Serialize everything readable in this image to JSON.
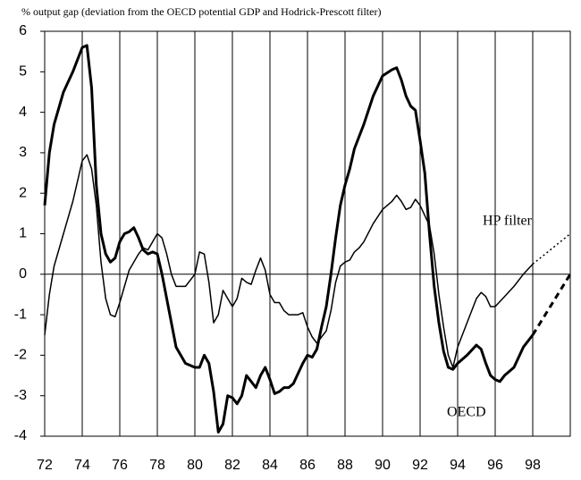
{
  "chart_data": {
    "type": "line",
    "title": "% output gap (deviation from the OECD potential GDP and Hodrick-Prescott filter)",
    "xlim": [
      72,
      100
    ],
    "ylim": [
      -4,
      6
    ],
    "xticks": [
      72,
      74,
      76,
      78,
      80,
      82,
      84,
      86,
      88,
      90,
      92,
      94,
      96,
      98
    ],
    "yticks": [
      -4,
      -3,
      -2,
      -1,
      0,
      1,
      2,
      3,
      4,
      5,
      6
    ],
    "grid": "x",
    "series": [
      {
        "name": "OECD",
        "color": "#000000",
        "width": 3,
        "dash": "solid",
        "x": [
          72.0,
          72.25,
          72.5,
          73.0,
          73.5,
          74.0,
          74.25,
          74.5,
          74.75,
          75.0,
          75.25,
          75.5,
          75.75,
          76.0,
          76.25,
          76.5,
          76.75,
          77.0,
          77.25,
          77.5,
          77.75,
          78.0,
          78.25,
          78.5,
          78.75,
          79.0,
          79.5,
          80.0,
          80.25,
          80.5,
          80.75,
          81.0,
          81.25,
          81.5,
          81.75,
          82.0,
          82.25,
          82.5,
          82.75,
          83.0,
          83.25,
          83.5,
          83.75,
          84.0,
          84.25,
          84.5,
          84.75,
          85.0,
          85.25,
          85.5,
          85.75,
          86.0,
          86.25,
          86.5,
          86.75,
          87.0,
          87.25,
          87.5,
          87.75,
          88.0,
          88.25,
          88.5,
          89.0,
          89.5,
          90.0,
          90.5,
          90.75,
          91.0,
          91.25,
          91.5,
          91.75,
          92.0,
          92.25,
          92.5,
          92.75,
          93.0,
          93.25,
          93.5,
          93.75,
          94.0,
          94.5,
          95.0,
          95.25,
          95.5,
          95.75,
          96.0,
          96.25,
          96.5,
          97.0,
          97.5,
          98.0
        ],
        "values": [
          1.7,
          3.0,
          3.7,
          4.5,
          5.0,
          5.6,
          5.65,
          4.6,
          2.2,
          1.0,
          0.5,
          0.3,
          0.4,
          0.8,
          1.0,
          1.05,
          1.15,
          0.9,
          0.6,
          0.5,
          0.55,
          0.5,
          0.0,
          -0.6,
          -1.2,
          -1.8,
          -2.2,
          -2.3,
          -2.3,
          -2.0,
          -2.2,
          -2.9,
          -3.9,
          -3.7,
          -3.0,
          -3.05,
          -3.2,
          -3.0,
          -2.5,
          -2.65,
          -2.8,
          -2.5,
          -2.3,
          -2.6,
          -2.95,
          -2.9,
          -2.8,
          -2.8,
          -2.7,
          -2.45,
          -2.2,
          -2.0,
          -2.05,
          -1.85,
          -1.3,
          -0.8,
          0.0,
          0.9,
          1.7,
          2.2,
          2.6,
          3.1,
          3.7,
          4.4,
          4.9,
          5.05,
          5.1,
          4.8,
          4.4,
          4.15,
          4.05,
          3.3,
          2.5,
          1.0,
          -0.3,
          -1.2,
          -1.9,
          -2.3,
          -2.35,
          -2.2,
          -2.0,
          -1.75,
          -1.85,
          -2.2,
          -2.5,
          -2.6,
          -2.65,
          -2.5,
          -2.3,
          -1.8,
          -1.5
        ]
      },
      {
        "name": "HP filter",
        "color": "#000000",
        "width": 1.5,
        "dash": "solid",
        "x": [
          72.0,
          72.25,
          72.5,
          73.0,
          73.5,
          74.0,
          74.25,
          74.5,
          74.75,
          75.0,
          75.25,
          75.5,
          75.75,
          76.0,
          76.25,
          76.5,
          77.0,
          77.25,
          77.5,
          77.75,
          78.0,
          78.25,
          78.5,
          78.75,
          79.0,
          79.5,
          80.0,
          80.25,
          80.5,
          80.75,
          81.0,
          81.25,
          81.5,
          81.75,
          82.0,
          82.25,
          82.5,
          82.75,
          83.0,
          83.25,
          83.5,
          83.75,
          84.0,
          84.25,
          84.5,
          84.75,
          85.0,
          85.5,
          85.75,
          86.0,
          86.25,
          86.5,
          86.75,
          87.0,
          87.25,
          87.5,
          87.75,
          88.0,
          88.25,
          88.5,
          88.75,
          89.0,
          89.5,
          90.0,
          90.5,
          90.75,
          91.0,
          91.25,
          91.5,
          91.75,
          92.0,
          92.5,
          92.75,
          93.0,
          93.25,
          93.5,
          93.75,
          94.0,
          94.5,
          95.0,
          95.25,
          95.5,
          95.75,
          96.0,
          96.5,
          97.0,
          97.5,
          98.0
        ],
        "values": [
          -1.5,
          -0.5,
          0.2,
          1.0,
          1.8,
          2.8,
          2.95,
          2.6,
          1.7,
          0.3,
          -0.6,
          -1.0,
          -1.05,
          -0.7,
          -0.3,
          0.1,
          0.5,
          0.65,
          0.6,
          0.8,
          1.0,
          0.9,
          0.5,
          0.0,
          -0.3,
          -0.3,
          0.0,
          0.55,
          0.5,
          -0.2,
          -1.2,
          -1.0,
          -0.4,
          -0.6,
          -0.8,
          -0.6,
          -0.1,
          -0.2,
          -0.25,
          0.1,
          0.4,
          0.1,
          -0.5,
          -0.7,
          -0.7,
          -0.9,
          -1.0,
          -1.0,
          -0.95,
          -1.3,
          -1.55,
          -1.7,
          -1.55,
          -1.4,
          -0.9,
          -0.2,
          0.2,
          0.3,
          0.35,
          0.55,
          0.65,
          0.8,
          1.25,
          1.6,
          1.8,
          1.95,
          1.8,
          1.6,
          1.65,
          1.85,
          1.7,
          1.2,
          0.5,
          -0.5,
          -1.3,
          -2.0,
          -2.3,
          -1.8,
          -1.2,
          -0.6,
          -0.45,
          -0.55,
          -0.8,
          -0.8,
          -0.55,
          -0.3,
          0.0,
          0.25
        ]
      },
      {
        "color": "#000000",
        "width": 3,
        "dash": "dashed",
        "x": [
          98.0,
          100.0
        ],
        "values": [
          -1.5,
          0.0
        ]
      },
      {
        "color": "#000000",
        "width": 1.5,
        "dash": "dotted",
        "x": [
          98.0,
          100.0
        ],
        "values": [
          0.25,
          1.0
        ]
      }
    ]
  }
}
